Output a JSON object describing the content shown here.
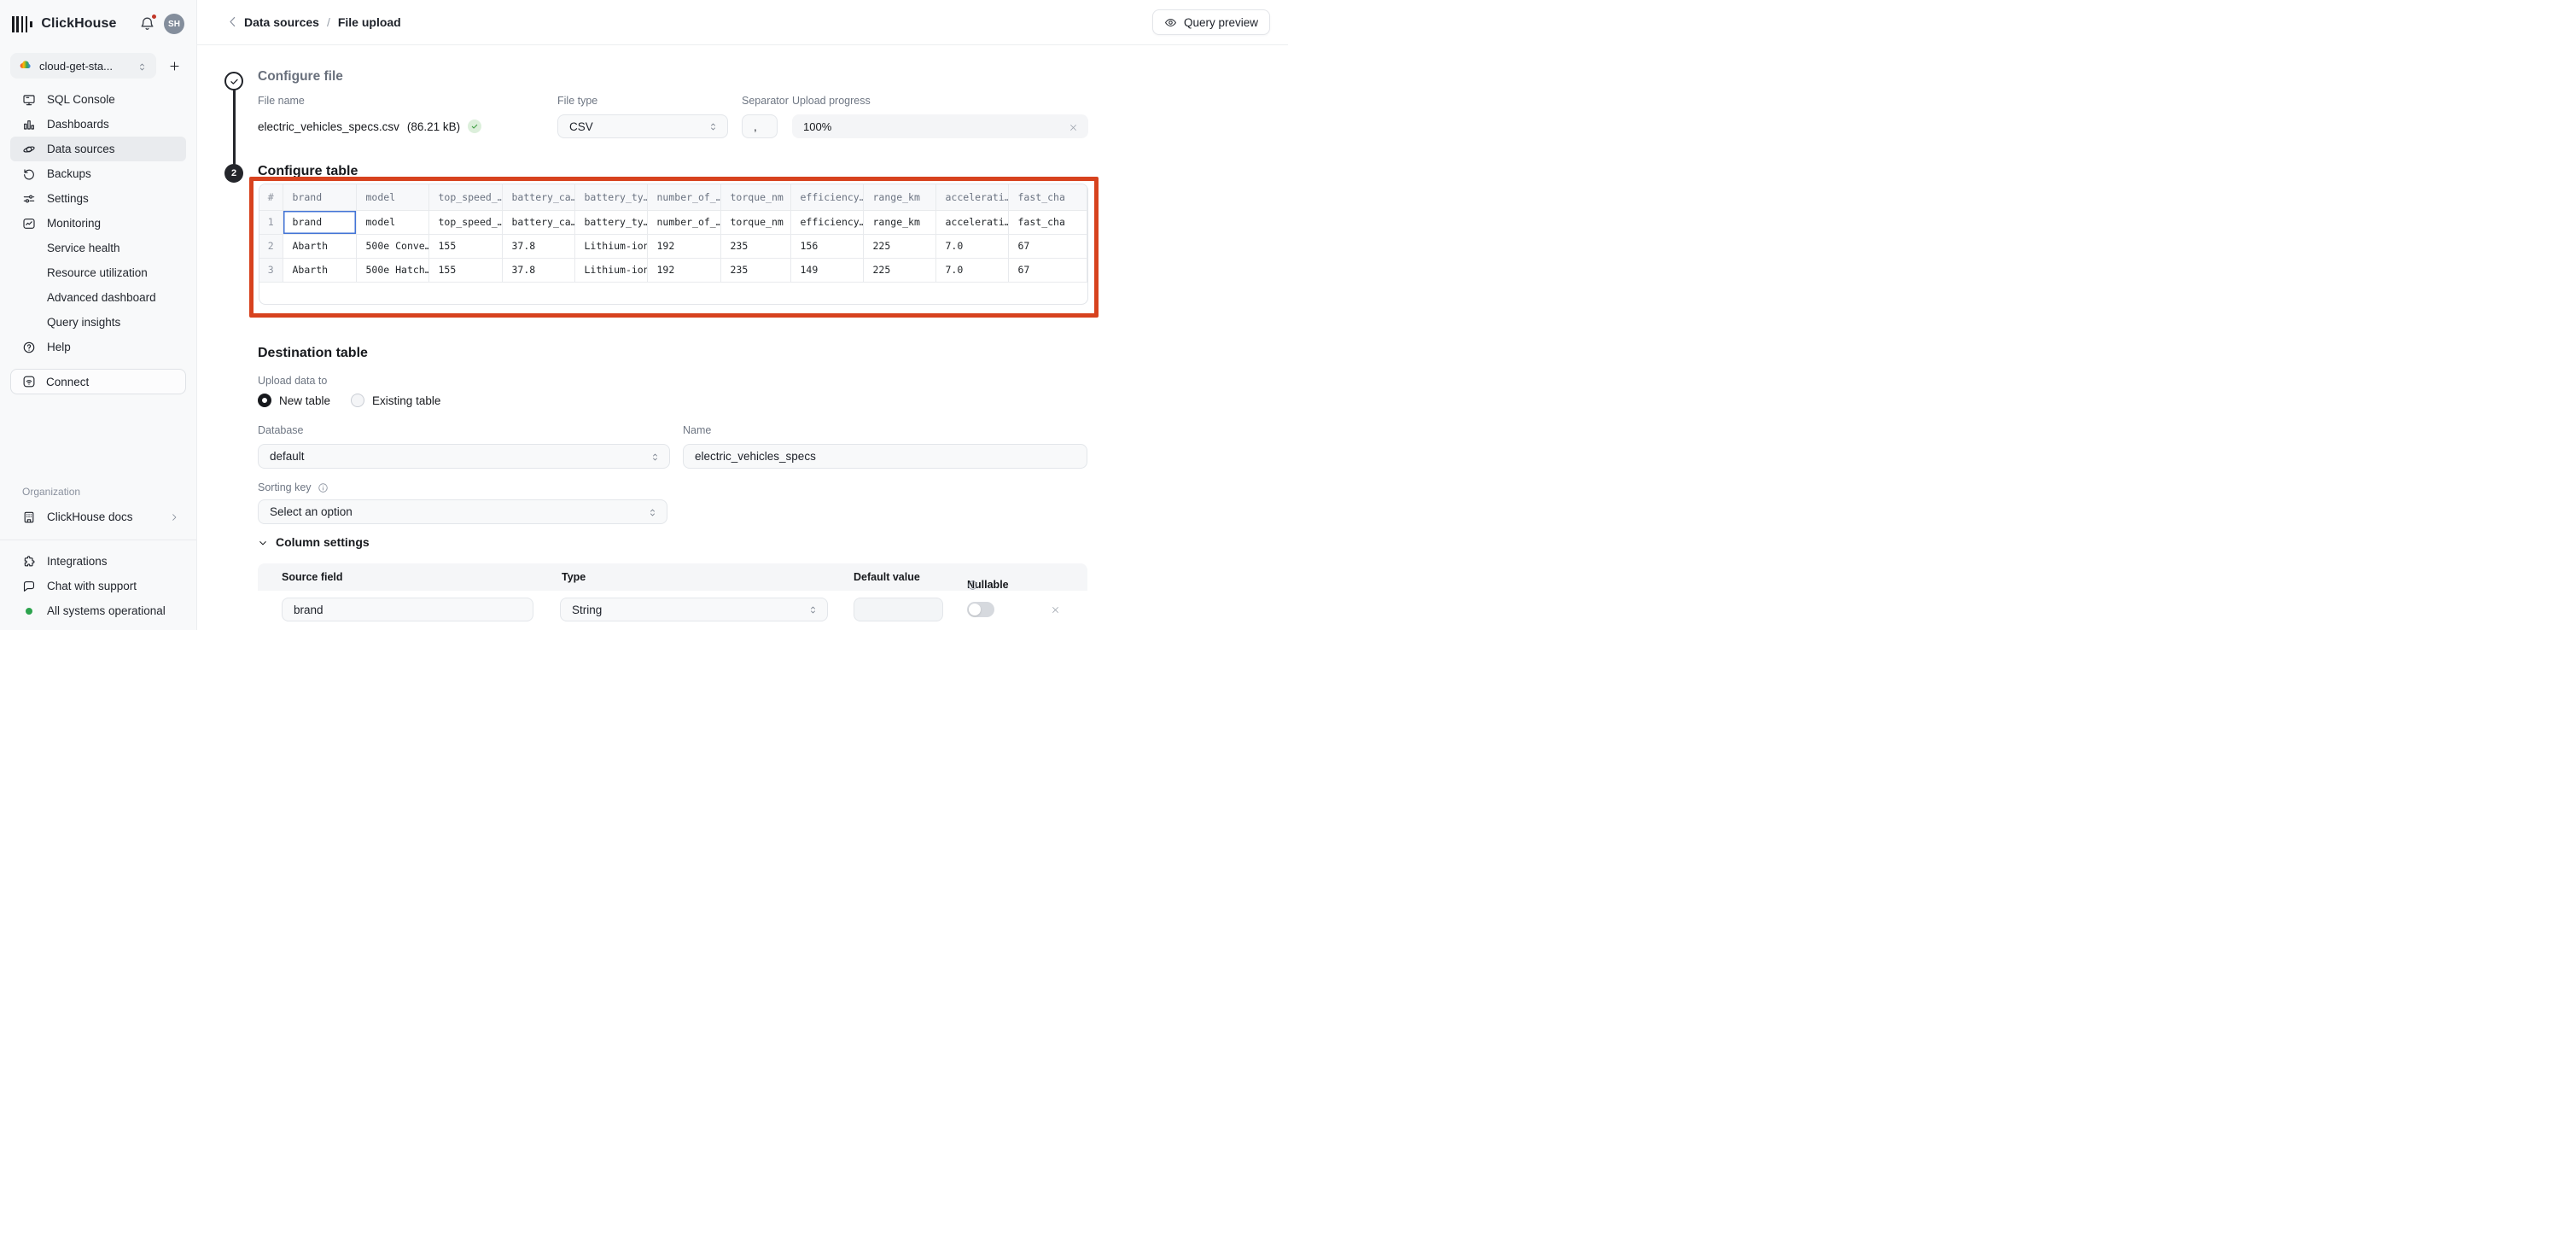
{
  "sidebar": {
    "brand": "ClickHouse",
    "avatar_initials": "SH",
    "workspace_name": "cloud-get-sta...",
    "nav_items": [
      {
        "label": "SQL Console",
        "icon": "console",
        "active": false
      },
      {
        "label": "Dashboards",
        "icon": "dashboards",
        "active": false
      },
      {
        "label": "Data sources",
        "icon": "data-sources",
        "active": true
      },
      {
        "label": "Backups",
        "icon": "backups",
        "active": false
      },
      {
        "label": "Settings",
        "icon": "settings",
        "active": false
      },
      {
        "label": "Monitoring",
        "icon": "monitoring",
        "active": false
      },
      {
        "label": "Service health",
        "icon": null,
        "active": false
      },
      {
        "label": "Resource utilization",
        "icon": null,
        "active": false
      },
      {
        "label": "Advanced dashboard",
        "icon": null,
        "active": false
      },
      {
        "label": "Query insights",
        "icon": null,
        "active": false
      },
      {
        "label": "Help",
        "icon": "help",
        "active": false
      }
    ],
    "connect_label": "Connect",
    "organization_label": "Organization",
    "docs_label": "ClickHouse docs",
    "footer_items": [
      {
        "label": "Integrations",
        "icon": "integrations"
      },
      {
        "label": "Chat with support",
        "icon": "chat"
      },
      {
        "label": "All systems operational",
        "icon": "status-dot"
      }
    ],
    "status_color": "#2da44e"
  },
  "header": {
    "breadcrumb_parent": "Data sources",
    "breadcrumb_separator": "/",
    "breadcrumb_current": "File upload",
    "query_preview_label": "Query preview"
  },
  "steps": {
    "step2_number": "2"
  },
  "configure_file": {
    "title": "Configure file",
    "file_name_label": "File name",
    "file_name": "electric_vehicles_specs.csv",
    "file_size": "(86.21 kB)",
    "file_type_label": "File type",
    "file_type_value": "CSV",
    "separator_label": "Separator",
    "separator_value": ",",
    "upload_progress_label": "Upload progress",
    "upload_progress_value": "100%"
  },
  "configure_table": {
    "title": "Configure table",
    "highlight_color": "#d7421e",
    "preview": {
      "headers": [
        "#",
        "brand",
        "model",
        "top_speed_…",
        "battery_ca…",
        "battery_ty…",
        "number_of_…",
        "torque_nm",
        "efficiency…",
        "range_km",
        "accelerati…",
        "fast_cha"
      ],
      "rows": [
        {
          "num": "1",
          "cells": [
            "brand",
            "model",
            "top_speed_…",
            "battery_ca…",
            "battery_ty…",
            "number_of_…",
            "torque_nm",
            "efficiency…",
            "range_km",
            "accelerati…",
            "fast_cha"
          ]
        },
        {
          "num": "2",
          "cells": [
            "Abarth",
            "500e Conve…",
            "155",
            "37.8",
            "Lithium-ion",
            "192",
            "235",
            "156",
            "225",
            "7.0",
            "67"
          ]
        },
        {
          "num": "3",
          "cells": [
            "Abarth",
            "500e Hatch…",
            "155",
            "37.8",
            "Lithium-ion",
            "192",
            "235",
            "149",
            "225",
            "7.0",
            "67"
          ]
        }
      ]
    }
  },
  "destination": {
    "title": "Destination table",
    "upload_data_to_label": "Upload data to",
    "radio_new_label": "New table",
    "radio_existing_label": "Existing table",
    "radio_selected": "New table",
    "database_label": "Database",
    "database_value": "default",
    "name_label": "Name",
    "name_value": "electric_vehicles_specs",
    "sorting_key_label": "Sorting key",
    "sorting_key_placeholder": "Select an option",
    "column_settings_label": "Column settings",
    "column_settings": {
      "headers": [
        "Source field",
        "Type",
        "Default value",
        "Nullable"
      ],
      "row": {
        "source_field": "brand",
        "type": "String",
        "default_value": "",
        "nullable": false
      }
    }
  }
}
